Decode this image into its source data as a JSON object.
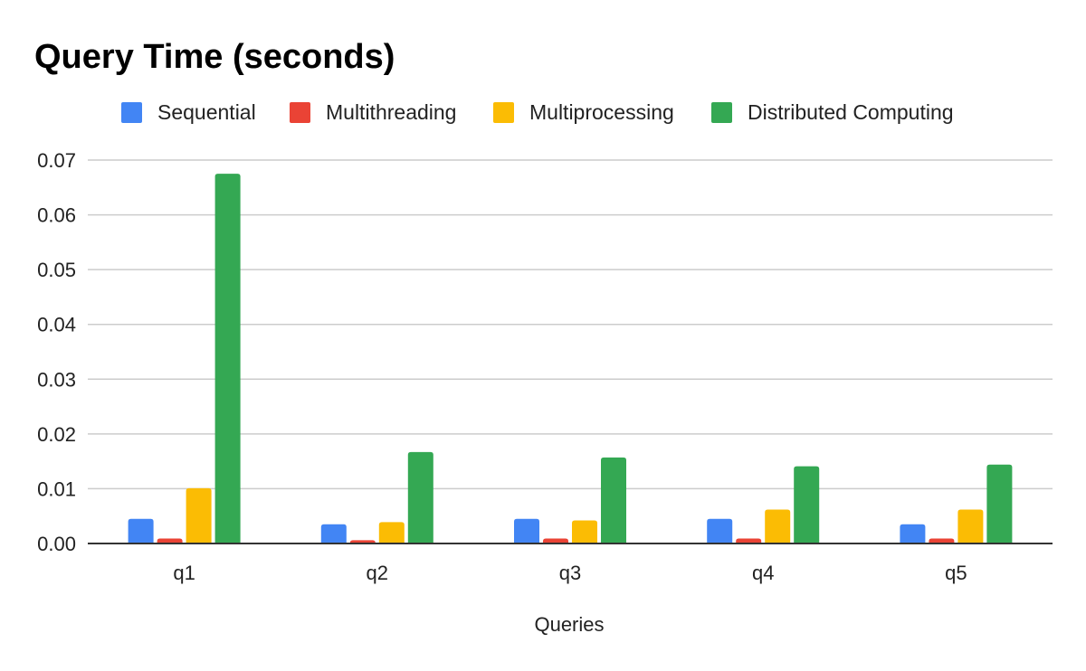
{
  "chart_data": {
    "type": "bar",
    "title": "Query Time (seconds)",
    "xlabel": "Queries",
    "ylabel": "",
    "categories": [
      "q1",
      "q2",
      "q3",
      "q4",
      "q5"
    ],
    "ylim": [
      0,
      0.07
    ],
    "yticks": [
      "0.00",
      "0.01",
      "0.02",
      "0.03",
      "0.04",
      "0.05",
      "0.06",
      "0.07"
    ],
    "grid": true,
    "legend_position": "top",
    "series": [
      {
        "name": "Sequential",
        "color": "#4285f4",
        "values": [
          0.0045,
          0.0035,
          0.0045,
          0.0045,
          0.0035
        ]
      },
      {
        "name": "Multithreading",
        "color": "#ea4335",
        "values": [
          0.0009,
          0.0006,
          0.0009,
          0.0009,
          0.0009
        ]
      },
      {
        "name": "Multiprocessing",
        "color": "#fbbc04",
        "values": [
          0.0101,
          0.0039,
          0.0042,
          0.0062,
          0.0062
        ]
      },
      {
        "name": "Distributed Computing",
        "color": "#34a853",
        "values": [
          0.0675,
          0.0167,
          0.0157,
          0.0141,
          0.0144
        ]
      }
    ]
  }
}
